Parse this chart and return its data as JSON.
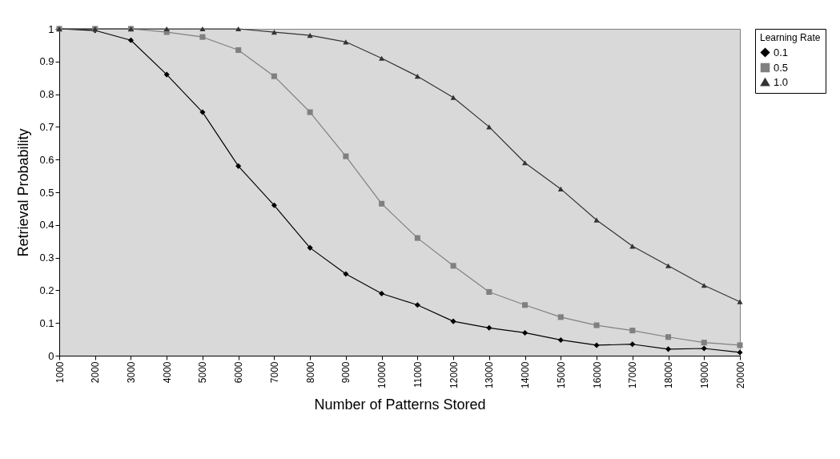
{
  "chart_data": {
    "type": "line",
    "xlabel": "Number of Patterns Stored",
    "ylabel": "Retrieval Probability",
    "legend_title": "Learning Rate",
    "categories": [
      "1000",
      "2000",
      "3000",
      "4000",
      "5000",
      "6000",
      "7000",
      "8000",
      "9000",
      "10000",
      "11000",
      "12000",
      "13000",
      "14000",
      "15000",
      "16000",
      "17000",
      "18000",
      "19000",
      "20000"
    ],
    "series": [
      {
        "name": "0.1",
        "color": "#000000",
        "marker": "diamond",
        "values": [
          1.0,
          0.995,
          0.965,
          0.86,
          0.745,
          0.58,
          0.46,
          0.33,
          0.25,
          0.19,
          0.155,
          0.105,
          0.085,
          0.07,
          0.048,
          0.032,
          0.035,
          0.02,
          0.022,
          0.01
        ]
      },
      {
        "name": "0.5",
        "color": "#808080",
        "marker": "square",
        "values": [
          1.0,
          1.0,
          1.0,
          0.99,
          0.975,
          0.935,
          0.855,
          0.745,
          0.61,
          0.465,
          0.36,
          0.275,
          0.195,
          0.155,
          0.118,
          0.093,
          0.077,
          0.057,
          0.04,
          0.032
        ]
      },
      {
        "name": "1.0",
        "color": "#333333",
        "marker": "triangle",
        "values": [
          1.0,
          1.0,
          1.0,
          1.0,
          1.0,
          1.0,
          0.99,
          0.98,
          0.96,
          0.91,
          0.855,
          0.79,
          0.7,
          0.59,
          0.51,
          0.415,
          0.335,
          0.275,
          0.215,
          0.165
        ]
      }
    ],
    "ylim": [
      0,
      1
    ],
    "yticks": [
      0,
      0.1,
      0.2,
      0.3,
      0.4,
      0.5,
      0.6,
      0.7,
      0.8,
      0.9,
      1
    ],
    "grid": false,
    "legend": "right",
    "line_style": "solid"
  }
}
